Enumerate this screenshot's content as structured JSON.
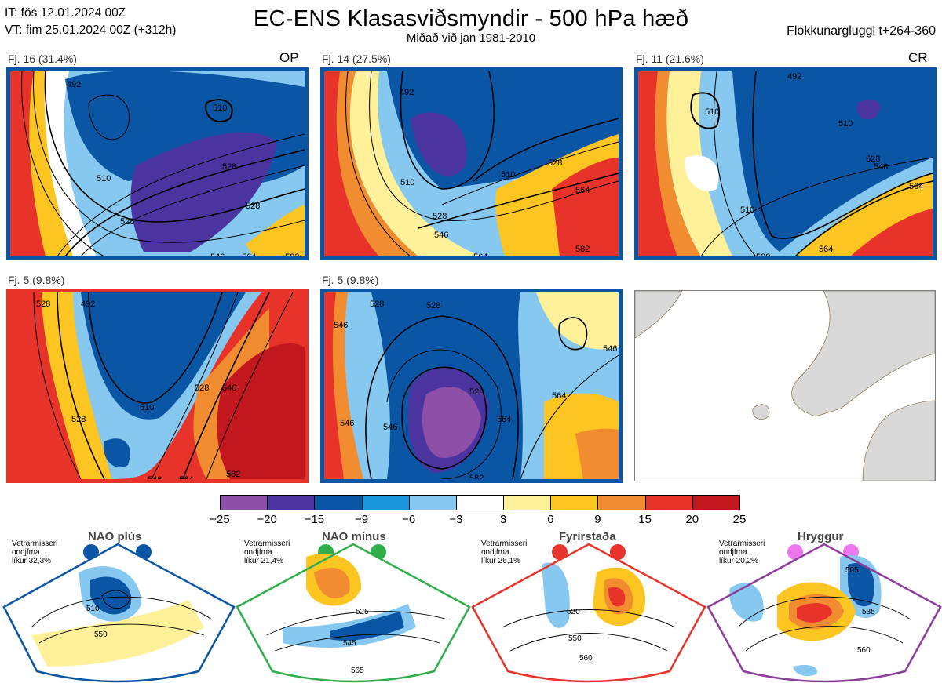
{
  "header": {
    "issue_time": "IT: fös 12.01.2024 00Z",
    "valid_time": "VT: fim 25.01.2024 00Z  (+312h)",
    "title": "EC-ENS Klasasviðsmyndir - 500 hPa hæð",
    "subtitle": "Miðað við jan 1981-2010",
    "window": "Flokkunargluggi t+264-360"
  },
  "clusters": [
    {
      "label": "Fj. 16 (31.4%)",
      "tag": "OP",
      "frame_color": "#0b56a4",
      "contour_labels": [
        "492",
        "510",
        "510",
        "528",
        "528",
        "528",
        "546",
        "564",
        "582",
        "564",
        "546"
      ]
    },
    {
      "label": "Fj. 14 (27.5%)",
      "tag": "",
      "frame_color": "#0b56a4",
      "contour_labels": [
        "492",
        "510",
        "510",
        "528",
        "528",
        "528",
        "546",
        "546",
        "564",
        "564",
        "582",
        "582"
      ]
    },
    {
      "label": "Fj. 11 (21.6%)",
      "tag": "CR",
      "frame_color": "#0b56a4",
      "contour_labels": [
        "492",
        "510",
        "510",
        "510",
        "528",
        "528",
        "546",
        "546",
        "564",
        "564",
        "582"
      ]
    },
    {
      "label": "Fj. 5 (9.8%)",
      "tag": "",
      "frame_color": "#e8332a",
      "contour_labels": [
        "528",
        "492",
        "510",
        "510",
        "528",
        "528",
        "546",
        "546",
        "564",
        "564",
        "582"
      ]
    },
    {
      "label": "Fj. 5 (9.8%)",
      "tag": "",
      "frame_color": "#0b56a4",
      "contour_labels": [
        "546",
        "528",
        "528",
        "528",
        "546",
        "546",
        "546",
        "564",
        "564",
        "582"
      ]
    }
  ],
  "colorbar": {
    "ticks": [
      "−25",
      "−20",
      "−15",
      "−9",
      "−6",
      "−3",
      "3",
      "6",
      "9",
      "15",
      "20",
      "25"
    ],
    "colors": [
      "#8e4fa8",
      "#4b33a0",
      "#0b56a4",
      "#1a95da",
      "#86c8ef",
      "#ffffff",
      "#fff19a",
      "#fdc521",
      "#f18c31",
      "#e8332a",
      "#c3171f"
    ]
  },
  "regimes": [
    {
      "title": "NAO plús",
      "info": [
        "Vetrarmisseri",
        "ondjfma",
        "líkur 32,3%"
      ],
      "color": "#0b56a4",
      "contour_labels": [
        "510",
        "550"
      ]
    },
    {
      "title": "NAO mínus",
      "info": [
        "Vetrarmisseri",
        "ondjfma",
        "líkur 21,4%"
      ],
      "color": "#2fae4a",
      "contour_labels": [
        "525",
        "545",
        "565"
      ]
    },
    {
      "title": "Fyrirstaða",
      "info": [
        "Vetrarmisseri",
        "ondjfma",
        "líkur 26,1%"
      ],
      "color": "#e8332a",
      "contour_labels": [
        "520",
        "550",
        "560"
      ]
    },
    {
      "title": "Hryggur",
      "info": [
        "Vetrarmisseri",
        "ondjfma",
        "líkur 20,2%"
      ],
      "color": "#8e3d9c",
      "contour_labels": [
        "505",
        "535",
        "560"
      ]
    }
  ]
}
